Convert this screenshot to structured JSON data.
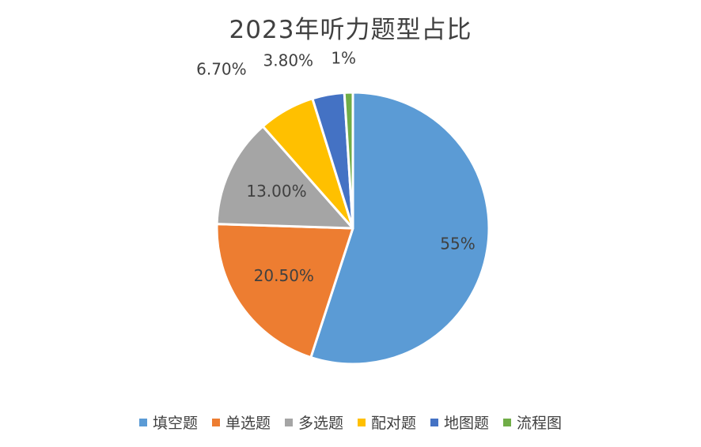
{
  "chart_data": {
    "type": "pie",
    "title": "2023年听力题型占比",
    "categories": [
      "填空题",
      "单选题",
      "多选题",
      "配对题",
      "地图题",
      "流程图"
    ],
    "values": [
      55,
      20.5,
      13.0,
      6.7,
      3.8,
      1
    ],
    "data_labels": [
      "55%",
      "20.50%",
      "13.00%",
      "6.70%",
      "3.80%",
      "1%"
    ],
    "colors": [
      "#5B9BD5",
      "#ED7D31",
      "#A5A5A5",
      "#FFC000",
      "#4472C4",
      "#70AD47"
    ],
    "legend_position": "bottom",
    "start_angle_deg": 0,
    "direction": "clockwise"
  }
}
